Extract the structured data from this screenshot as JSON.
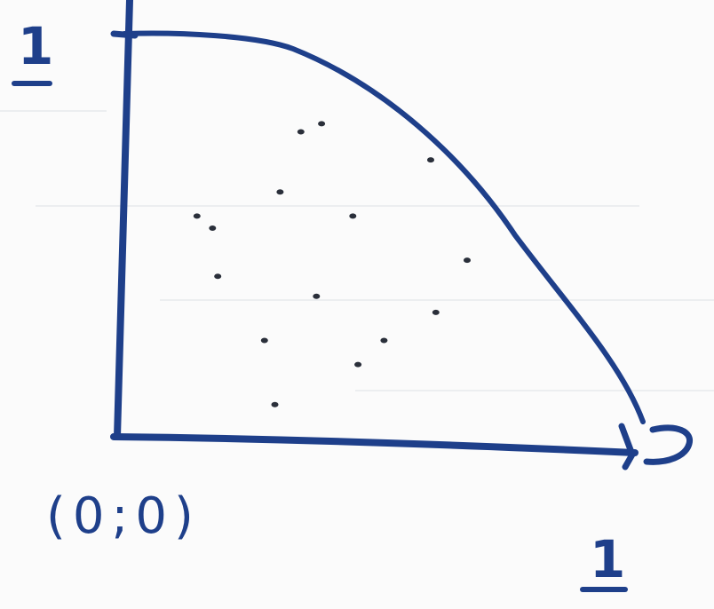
{
  "labels": {
    "y_tick_one": "1",
    "origin": "(0;0)",
    "x_tick_one": "1"
  },
  "colors": {
    "ink": "#1e3f8a",
    "dots": "#2a2f3a",
    "paper": "#fbfbfb",
    "rule_lines": "#eceef0"
  },
  "points": [
    {
      "x": 0.35,
      "y": 0.76
    },
    {
      "x": 0.39,
      "y": 0.78
    },
    {
      "x": 0.6,
      "y": 0.69
    },
    {
      "x": 0.31,
      "y": 0.61
    },
    {
      "x": 0.15,
      "y": 0.55
    },
    {
      "x": 0.18,
      "y": 0.52
    },
    {
      "x": 0.45,
      "y": 0.55
    },
    {
      "x": 0.67,
      "y": 0.44
    },
    {
      "x": 0.19,
      "y": 0.4
    },
    {
      "x": 0.38,
      "y": 0.35
    },
    {
      "x": 0.61,
      "y": 0.31
    },
    {
      "x": 0.51,
      "y": 0.24
    },
    {
      "x": 0.28,
      "y": 0.24
    },
    {
      "x": 0.46,
      "y": 0.18
    },
    {
      "x": 0.3,
      "y": 0.08
    }
  ]
}
